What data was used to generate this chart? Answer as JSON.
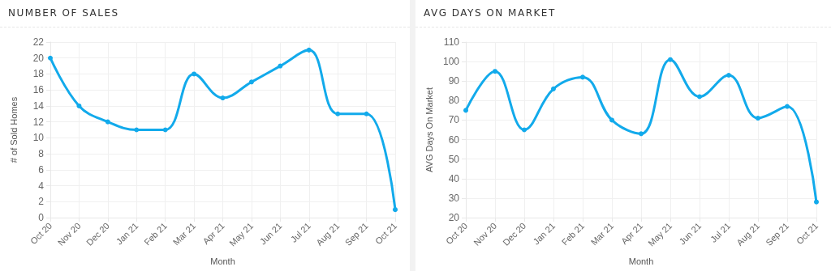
{
  "chart_data": [
    {
      "type": "line",
      "title": "NUMBER OF SALES",
      "xlabel": "Month",
      "ylabel": "# of Sold Homes",
      "categories": [
        "Oct 20",
        "Nov 20",
        "Dec 20",
        "Jan 21",
        "Feb 21",
        "Mar 21",
        "Apr 21",
        "May 21",
        "Jun 21",
        "Jul 21",
        "Aug 21",
        "Sep 21",
        "Oct 21"
      ],
      "series": [
        {
          "color": "#12aaeb",
          "values": [
            20,
            14,
            12,
            11,
            11,
            18,
            15,
            17,
            19,
            21,
            13,
            13,
            1
          ]
        }
      ],
      "ylim": [
        0,
        22
      ],
      "yticks": [
        0,
        2,
        4,
        6,
        8,
        10,
        12,
        14,
        16,
        18,
        20,
        22
      ],
      "grid": true,
      "marker": "circle",
      "line_style": "solid"
    },
    {
      "type": "line",
      "title": "AVG DAYS ON MARKET",
      "xlabel": "Month",
      "ylabel": "AVG Days On Market",
      "categories": [
        "Oct 20",
        "Nov 20",
        "Dec 20",
        "Jan 21",
        "Feb 21",
        "Mar 21",
        "Apr 21",
        "May 21",
        "Jun 21",
        "Jul 21",
        "Aug 21",
        "Sep 21",
        "Oct 21"
      ],
      "series": [
        {
          "color": "#12aaeb",
          "values": [
            75,
            95,
            65,
            86,
            92,
            70,
            63,
            101,
            82,
            93,
            71,
            77,
            28
          ]
        }
      ],
      "ylim": [
        20,
        110
      ],
      "yticks": [
        20,
        30,
        40,
        50,
        60,
        70,
        80,
        90,
        100,
        110
      ],
      "grid": true,
      "marker": "circle",
      "line_style": "solid"
    }
  ]
}
